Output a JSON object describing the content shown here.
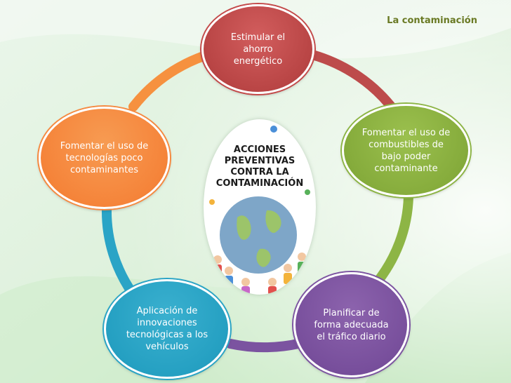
{
  "topic": "La contaminación",
  "center": {
    "lines": [
      "ACCIONES",
      "PREVENTIVAS",
      "CONTRA LA",
      "CONTAMINACIÓN"
    ],
    "illustration": "globe-with-children"
  },
  "nodes": [
    {
      "id": "red",
      "color": "#b94545",
      "lines": [
        "Estimular el",
        "ahorro",
        "energético"
      ]
    },
    {
      "id": "green",
      "color": "#86ac3c",
      "lines": [
        "Fomentar el uso de",
        "combustibles de",
        "bajo poder",
        "contaminante"
      ]
    },
    {
      "id": "purple",
      "color": "#784f9c",
      "lines": [
        "Planificar de",
        "forma adecuada",
        "el tráfico diario"
      ]
    },
    {
      "id": "blue",
      "color": "#25a0c2",
      "lines": [
        "Aplicación de",
        "innovaciones",
        "tecnológicas a los",
        "vehículos"
      ]
    },
    {
      "id": "orange",
      "color": "#f5843a",
      "lines": [
        "Fomentar el uso de",
        "tecnologías poco",
        "contaminantes"
      ]
    }
  ],
  "cycle_colors": [
    "#bd4b4b",
    "#8db545",
    "#7b53a0",
    "#2aa4c6",
    "#f6913f"
  ]
}
